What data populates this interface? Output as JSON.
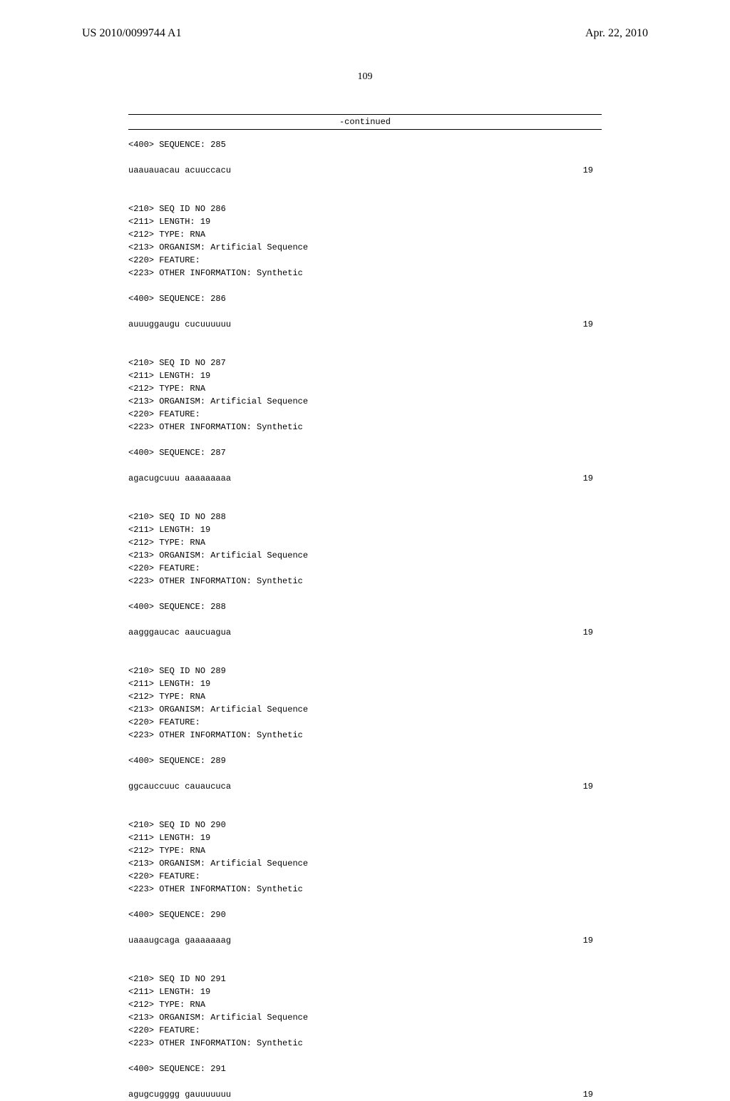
{
  "header": {
    "publication_number": "US 2010/0099744 A1",
    "publication_date": "Apr. 22, 2010"
  },
  "page_number": "109",
  "continued_label": "-continued",
  "sequences": [
    {
      "pre_header": [
        "<400> SEQUENCE: 285"
      ],
      "sequence": "uaauauacau acuuccacu",
      "length": "19",
      "header": [
        "<210> SEQ ID NO 286",
        "<211> LENGTH: 19",
        "<212> TYPE: RNA",
        "<213> ORGANISM: Artificial Sequence",
        "<220> FEATURE:",
        "<223> OTHER INFORMATION: Synthetic"
      ],
      "seq_label": "<400> SEQUENCE: 286",
      "sequence2": "auuuggaugu cucuuuuuu",
      "length2": "19"
    },
    {
      "header": [
        "<210> SEQ ID NO 287",
        "<211> LENGTH: 19",
        "<212> TYPE: RNA",
        "<213> ORGANISM: Artificial Sequence",
        "<220> FEATURE:",
        "<223> OTHER INFORMATION: Synthetic"
      ],
      "seq_label": "<400> SEQUENCE: 287",
      "sequence": "agacugcuuu aaaaaaaaa",
      "length": "19"
    },
    {
      "header": [
        "<210> SEQ ID NO 288",
        "<211> LENGTH: 19",
        "<212> TYPE: RNA",
        "<213> ORGANISM: Artificial Sequence",
        "<220> FEATURE:",
        "<223> OTHER INFORMATION: Synthetic"
      ],
      "seq_label": "<400> SEQUENCE: 288",
      "sequence": "aagggaucac aaucuagua",
      "length": "19"
    },
    {
      "header": [
        "<210> SEQ ID NO 289",
        "<211> LENGTH: 19",
        "<212> TYPE: RNA",
        "<213> ORGANISM: Artificial Sequence",
        "<220> FEATURE:",
        "<223> OTHER INFORMATION: Synthetic"
      ],
      "seq_label": "<400> SEQUENCE: 289",
      "sequence": "ggcauccuuc cauaucuca",
      "length": "19"
    },
    {
      "header": [
        "<210> SEQ ID NO 290",
        "<211> LENGTH: 19",
        "<212> TYPE: RNA",
        "<213> ORGANISM: Artificial Sequence",
        "<220> FEATURE:",
        "<223> OTHER INFORMATION: Synthetic"
      ],
      "seq_label": "<400> SEQUENCE: 290",
      "sequence": "uaaaugcaga gaaaaaaag",
      "length": "19"
    },
    {
      "header": [
        "<210> SEQ ID NO 291",
        "<211> LENGTH: 19",
        "<212> TYPE: RNA",
        "<213> ORGANISM: Artificial Sequence",
        "<220> FEATURE:",
        "<223> OTHER INFORMATION: Synthetic"
      ],
      "seq_label": "<400> SEQUENCE: 291",
      "sequence": "agugcugggg gauuuuuuu",
      "length": "19"
    }
  ]
}
